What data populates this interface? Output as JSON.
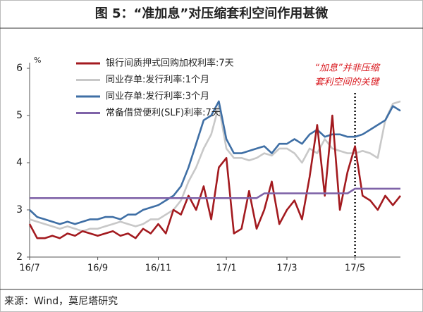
{
  "chart_data": {
    "type": "line",
    "title": "图 5：“准加息”对压缩套利空间作用甚微",
    "y_unit": "%",
    "source": "来源：Wind，莫尼塔研究",
    "annotation": [
      "“加息”并非压缩",
      "套利空间的关键"
    ],
    "categories": [
      "16/7",
      null,
      null,
      null,
      null,
      null,
      null,
      null,
      null,
      "16/9",
      null,
      null,
      null,
      null,
      null,
      null,
      null,
      "16/11",
      null,
      null,
      null,
      null,
      null,
      null,
      null,
      null,
      "17/1",
      null,
      null,
      null,
      null,
      null,
      null,
      null,
      "17/3",
      null,
      null,
      null,
      null,
      null,
      null,
      null,
      null,
      "17/5",
      null,
      null,
      null,
      null,
      null,
      null
    ],
    "ylim": [
      2,
      6
    ],
    "yticks": [
      2,
      3,
      4,
      5,
      6
    ],
    "grid": false,
    "legend": "top-left",
    "series": [
      {
        "name": "银行间质押式回购加权利率:7天",
        "color": "#a31a1f",
        "values": [
          2.7,
          2.4,
          2.4,
          2.45,
          2.4,
          2.5,
          2.45,
          2.55,
          2.5,
          2.45,
          2.5,
          2.55,
          2.45,
          2.5,
          2.4,
          2.6,
          2.5,
          2.7,
          2.5,
          3.0,
          2.9,
          3.3,
          3.0,
          3.5,
          2.8,
          3.9,
          4.1,
          2.5,
          2.6,
          3.4,
          2.6,
          3.0,
          3.6,
          2.7,
          3.0,
          3.2,
          2.8,
          3.7,
          4.8,
          3.3,
          5.0,
          3.0,
          3.8,
          4.35,
          3.3,
          3.2,
          3.0,
          3.3,
          3.1,
          3.3
        ]
      },
      {
        "name": "同业存单:发行利率:1个月",
        "color": "#c8c8c8",
        "values": [
          2.8,
          2.75,
          2.7,
          2.65,
          2.6,
          2.65,
          2.6,
          2.55,
          2.6,
          2.6,
          2.65,
          2.7,
          2.75,
          2.7,
          2.65,
          2.7,
          2.8,
          2.8,
          2.9,
          3.0,
          3.2,
          3.6,
          3.9,
          4.3,
          4.6,
          5.2,
          4.3,
          4.1,
          4.1,
          4.05,
          4.1,
          4.2,
          4.15,
          4.3,
          4.3,
          4.2,
          4.0,
          4.3,
          4.2,
          4.5,
          4.3,
          4.25,
          4.2,
          4.2,
          4.25,
          4.2,
          4.1,
          4.9,
          5.25,
          5.3
        ]
      },
      {
        "name": "同业存单:发行利率:3个月",
        "color": "#3f6fa5",
        "values": [
          3.0,
          2.85,
          2.8,
          2.75,
          2.7,
          2.75,
          2.7,
          2.75,
          2.8,
          2.8,
          2.85,
          2.85,
          2.8,
          2.9,
          2.9,
          3.0,
          3.05,
          3.1,
          3.2,
          3.3,
          3.5,
          3.9,
          4.4,
          4.9,
          5.0,
          5.3,
          4.5,
          4.2,
          4.2,
          4.25,
          4.3,
          4.35,
          4.2,
          4.4,
          4.4,
          4.5,
          4.4,
          4.6,
          4.7,
          4.55,
          4.6,
          4.6,
          4.55,
          4.55,
          4.6,
          4.7,
          4.8,
          4.9,
          5.2,
          5.1
        ]
      },
      {
        "name": "常备借贷便利(SLF)利率:7天",
        "color": "#7f63a8",
        "values": [
          3.25,
          3.25,
          3.25,
          3.25,
          3.25,
          3.25,
          3.25,
          3.25,
          3.25,
          3.25,
          3.25,
          3.25,
          3.25,
          3.25,
          3.25,
          3.25,
          3.25,
          3.25,
          3.25,
          3.25,
          3.25,
          3.25,
          3.25,
          3.25,
          3.25,
          3.25,
          3.25,
          3.25,
          3.25,
          3.25,
          3.25,
          3.35,
          3.35,
          3.35,
          3.35,
          3.35,
          3.35,
          3.35,
          3.35,
          3.35,
          3.35,
          3.35,
          3.35,
          3.45,
          3.45,
          3.45,
          3.45,
          3.45,
          3.45,
          3.45
        ]
      }
    ]
  }
}
